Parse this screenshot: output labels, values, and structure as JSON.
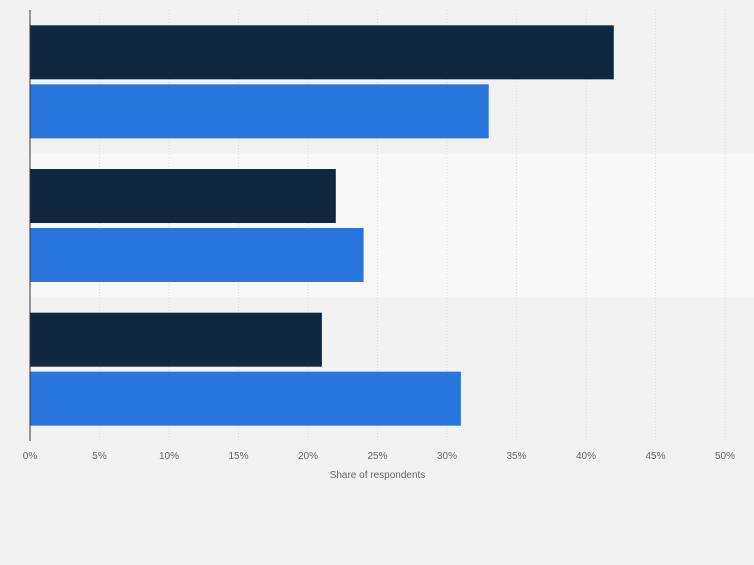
{
  "chart_data": {
    "type": "bar",
    "orientation": "horizontal",
    "categories": [
      "",
      "",
      ""
    ],
    "series": [
      {
        "values": [
          42,
          22,
          21
        ],
        "color": "#0f2740"
      },
      {
        "values": [
          33,
          24,
          31
        ],
        "color": "#2876dd"
      }
    ],
    "xlabel": "Share of respondents",
    "xlim": [
      0,
      50
    ],
    "xticks": [
      "0%",
      "5%",
      "10%",
      "15%",
      "20%",
      "25%",
      "30%",
      "35%",
      "40%",
      "45%",
      "50%"
    ],
    "grid": true,
    "legend": "none"
  }
}
